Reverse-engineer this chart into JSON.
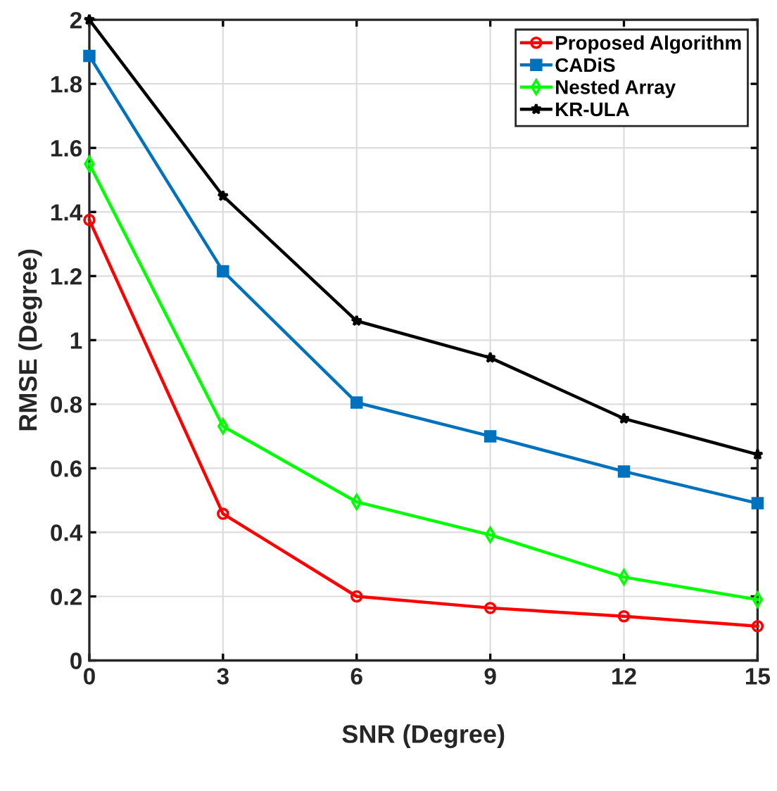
{
  "chart_data": {
    "type": "line",
    "xlabel": "SNR (Degree)",
    "ylabel": "RMSE (Degree)",
    "x": [
      0,
      3,
      6,
      9,
      12,
      15
    ],
    "series": [
      {
        "name": "Proposed Algorithm",
        "color": "#ff0000",
        "marker": "circle",
        "values": [
          1.375,
          0.458,
          0.2,
          0.164,
          0.138,
          0.107
        ]
      },
      {
        "name": "CADiS",
        "color": "#0072bd",
        "marker": "square",
        "values": [
          1.887,
          1.215,
          0.805,
          0.7,
          0.59,
          0.491
        ]
      },
      {
        "name": "Nested Array",
        "color": "#00ff00",
        "marker": "diamond",
        "values": [
          1.55,
          0.731,
          0.495,
          0.392,
          0.26,
          0.19
        ]
      },
      {
        "name": "KR-ULA",
        "color": "#000000",
        "marker": "star",
        "values": [
          2.0,
          1.45,
          1.06,
          0.945,
          0.755,
          0.643
        ]
      }
    ],
    "xlim": [
      0,
      15
    ],
    "xticks": [
      0,
      3,
      6,
      9,
      12,
      15
    ],
    "ylim": [
      0,
      2
    ],
    "yticks": [
      0,
      0.2,
      0.4,
      0.6,
      0.8,
      1,
      1.2,
      1.4,
      1.6,
      1.8,
      2
    ],
    "grid": true,
    "legend": "top right",
    "line_style": "solid"
  }
}
